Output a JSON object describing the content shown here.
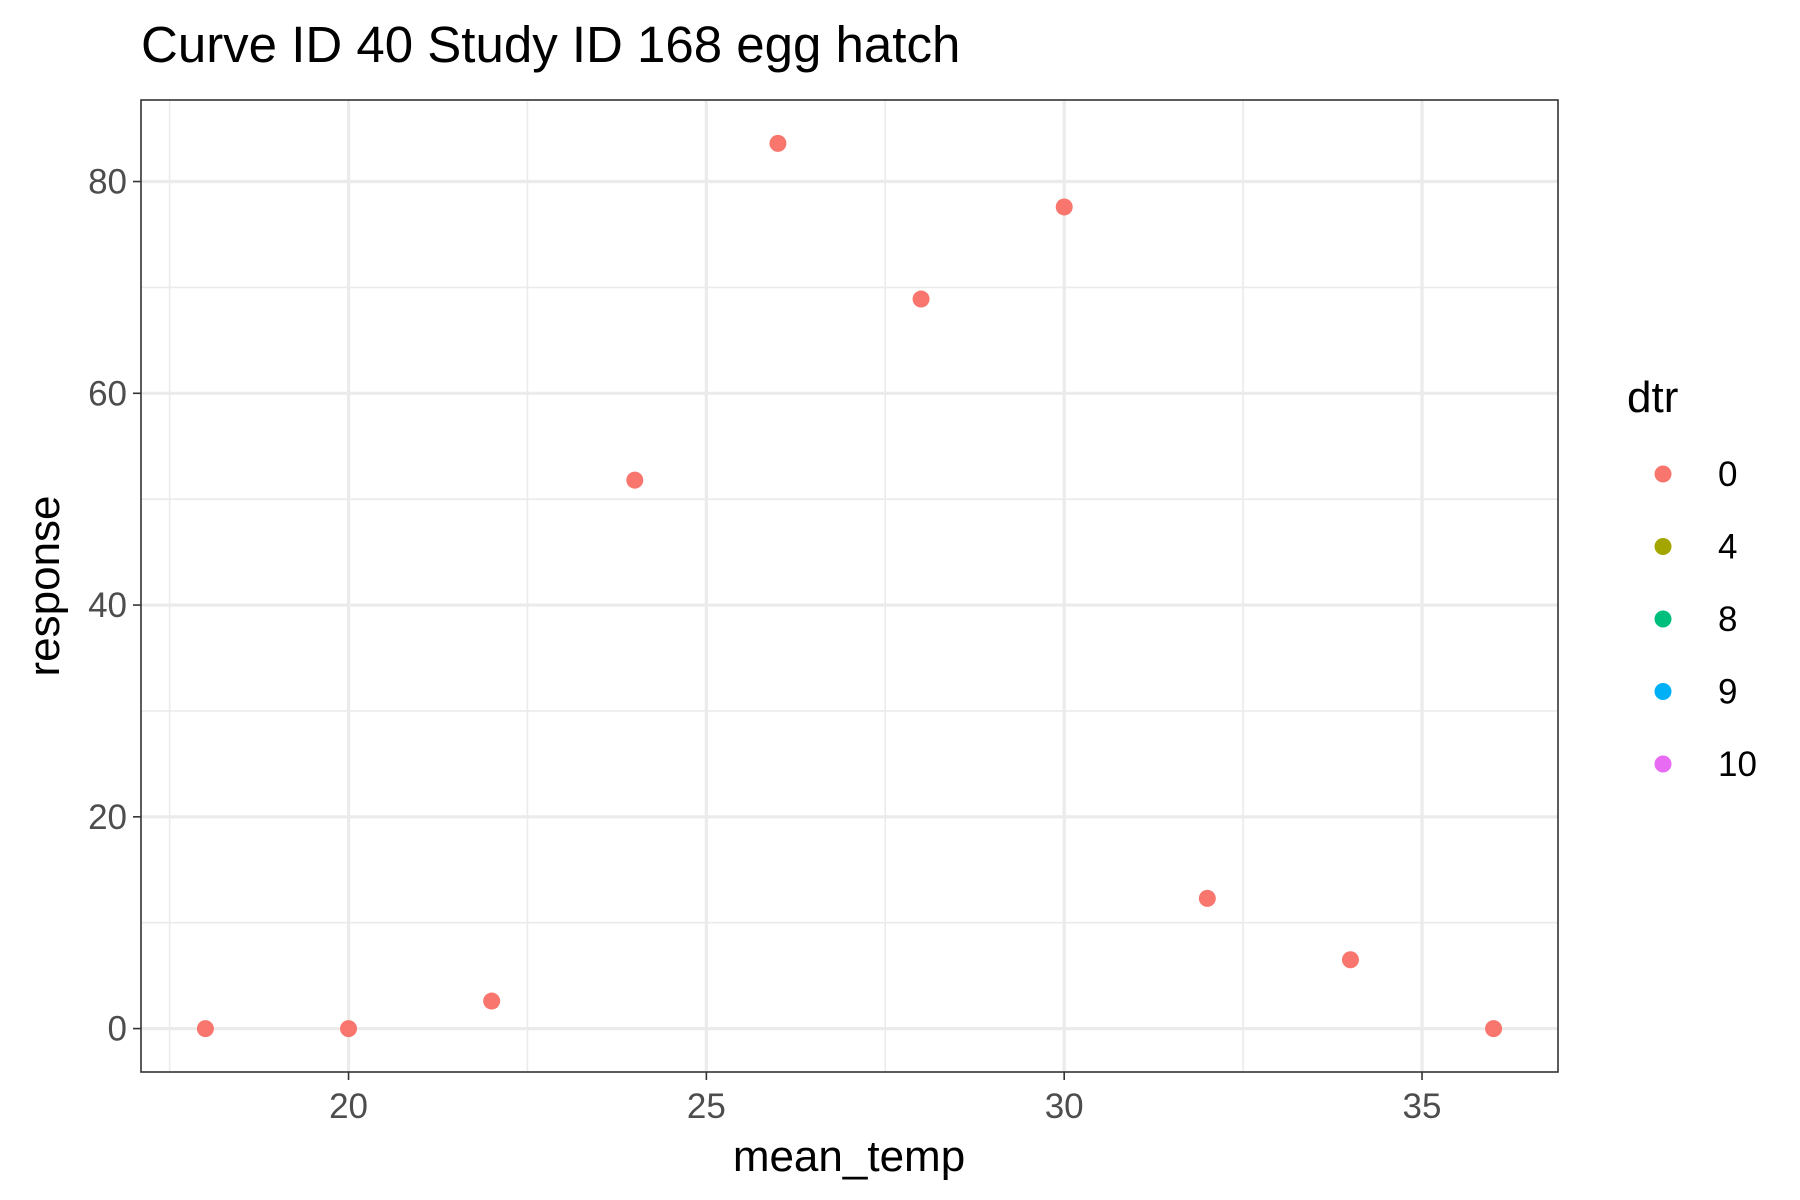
{
  "chart_data": {
    "type": "scatter",
    "title": "Curve ID 40 Study ID 168 egg hatch",
    "xlabel": "mean_temp",
    "ylabel": "response",
    "xlim": [
      17.1,
      36.9
    ],
    "ylim": [
      -4.1,
      87.7
    ],
    "x_ticks": [
      20,
      25,
      30,
      35
    ],
    "y_ticks": [
      0,
      20,
      40,
      60,
      80
    ],
    "x_minor": [
      17.5,
      22.5,
      27.5,
      32.5
    ],
    "y_minor": [
      10,
      30,
      50,
      70
    ],
    "grid": true,
    "legend": {
      "title": "dtr",
      "placement": "right",
      "entries": [
        {
          "label": "0",
          "color": "#F8766D"
        },
        {
          "label": "4",
          "color": "#A3A500"
        },
        {
          "label": "8",
          "color": "#00BF7D"
        },
        {
          "label": "9",
          "color": "#00B0F6"
        },
        {
          "label": "10",
          "color": "#E76BF3"
        }
      ]
    },
    "series": [
      {
        "name": "0",
        "color": "#F8766D",
        "x": [
          18,
          20,
          22,
          24,
          26,
          28,
          30,
          32,
          34,
          36
        ],
        "y": [
          0,
          0,
          2.6,
          51.8,
          83.6,
          68.9,
          77.6,
          12.3,
          6.5,
          0
        ]
      }
    ]
  }
}
